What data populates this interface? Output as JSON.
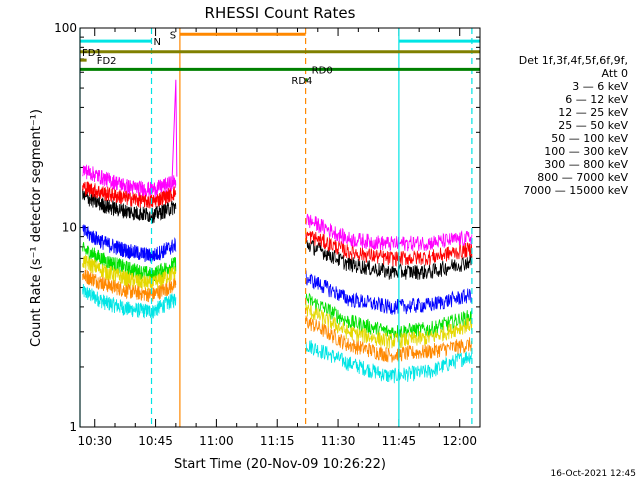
{
  "chart_data": {
    "type": "line",
    "title": "RHESSI Count Rates",
    "xlabel": "Start Time (20-Nov-09 10:26:22)",
    "ylabel": "Count Rate (s⁻¹ detector segment⁻¹)",
    "y_scale": "log",
    "ylim": [
      1,
      100
    ],
    "xlim": [
      "10:26:22",
      "12:05:00"
    ],
    "y_ticks": [
      "1",
      "10",
      "100"
    ],
    "x_ticks": [
      "10:30",
      "10:45",
      "11:00",
      "11:15",
      "11:30",
      "11:45",
      "12:00"
    ],
    "timestamp": "16-Oct-2021 12:45",
    "legend": {
      "placement": "right",
      "header": [
        "Det 1f,3f,4f,5f,6f,9f,",
        "Att 0"
      ],
      "entries": [
        {
          "label": "3 — 6 keV",
          "color": "#000000"
        },
        {
          "label": "6 — 12 keV",
          "color": "#ff00ff"
        },
        {
          "label": "12 — 25 keV",
          "color": "#00e000"
        },
        {
          "label": "25 — 50 keV",
          "color": "#00e5e5"
        },
        {
          "label": "50 — 100 keV",
          "color": "#e5d800"
        },
        {
          "label": "100 — 300 keV",
          "color": "#ff0000"
        },
        {
          "label": "300 — 800 keV",
          "color": "#0000ff"
        },
        {
          "label": "800 — 7000 keV",
          "color": "#ff8800"
        },
        {
          "label": "7000 — 15000 keV",
          "color": "#808000"
        }
      ]
    },
    "segments_x": [
      [
        "10:27",
        "10:50"
      ],
      [
        "11:22",
        "12:03"
      ]
    ],
    "series": [
      {
        "color": "#00e5e5",
        "values": [
          [
            4.8,
            4.2,
            3.9,
            3.8,
            4.4
          ],
          [
            2.6,
            2.1,
            1.8,
            1.9,
            2.3
          ]
        ]
      },
      {
        "color": "#ff8800",
        "values": [
          [
            5.8,
            5.2,
            4.8,
            4.6,
            5.2
          ],
          [
            3.4,
            2.6,
            2.3,
            2.4,
            2.6
          ]
        ]
      },
      {
        "color": "#00e000",
        "values": [
          [
            7.8,
            6.8,
            6.2,
            5.8,
            6.6
          ],
          [
            4.4,
            3.4,
            3.0,
            3.1,
            3.6
          ]
        ]
      },
      {
        "color": "#e5d800",
        "values": [
          [
            6.8,
            6.0,
            5.5,
            5.2,
            6.0
          ],
          [
            3.9,
            3.0,
            2.7,
            2.8,
            3.3
          ]
        ]
      },
      {
        "color": "#0000ff",
        "values": [
          [
            9.6,
            8.3,
            7.6,
            7.2,
            8.2
          ],
          [
            5.6,
            4.4,
            4.0,
            4.1,
            4.6
          ]
        ]
      },
      {
        "color": "#000000",
        "values": [
          [
            14.4,
            12.8,
            12.0,
            11.5,
            12.8
          ],
          [
            8.3,
            6.6,
            6.0,
            6.0,
            6.8
          ]
        ]
      },
      {
        "color": "#ff0000",
        "values": [
          [
            16.0,
            14.8,
            14.0,
            13.5,
            15.0
          ],
          [
            9.2,
            7.6,
            7.0,
            7.1,
            7.8
          ]
        ]
      },
      {
        "color": "#ff00ff",
        "values": [
          [
            19.5,
            17.5,
            16.0,
            15.5,
            17.0
          ],
          [
            11.0,
            8.8,
            8.3,
            8.4,
            8.9
          ]
        ]
      }
    ],
    "events": [
      {
        "label": "FD1",
        "color": "#808000",
        "y": 76,
        "x": [
          "10:26:22",
          "12:05:00"
        ],
        "label_x": "10:26:22"
      },
      {
        "label": "FD2",
        "color": "#808000",
        "y": 69,
        "x": [
          "10:26:22",
          "10:28"
        ],
        "label_x": "10:30"
      },
      {
        "label": "RD0",
        "color": "#008000",
        "y": 62,
        "x": [
          "10:26:22",
          "12:05:00"
        ],
        "label_x": "11:23"
      },
      {
        "label": "RD4",
        "color": "#008000",
        "y": 55,
        "x": [
          "11:22",
          "11:22:30"
        ],
        "label_x": "11:18"
      },
      {
        "label": "N",
        "color": "#00e5e5",
        "y": 86,
        "x": [
          "10:26:22",
          "10:44"
        ],
        "label_x": "10:44"
      },
      {
        "label": "",
        "color": "#00e5e5",
        "y": 86,
        "x": [
          "11:45",
          "12:05:00"
        ],
        "label_x": "11:45"
      },
      {
        "label": "S",
        "color": "#ff8800",
        "y": 93,
        "x": [
          "10:51",
          "11:22"
        ],
        "label_x": "10:48"
      }
    ],
    "vlines": [
      {
        "x": "10:26:22",
        "color": "#00e5e5",
        "style": "solid"
      },
      {
        "x": "10:44",
        "color": "#00e5e5",
        "style": "dashed"
      },
      {
        "x": "10:51",
        "color": "#ff8800",
        "style": "solid"
      },
      {
        "x": "11:22",
        "color": "#ff8800",
        "style": "dashed"
      },
      {
        "x": "11:45",
        "color": "#00e5e5",
        "style": "solid"
      },
      {
        "x": "12:03",
        "color": "#00e5e5",
        "style": "dashed"
      }
    ]
  }
}
